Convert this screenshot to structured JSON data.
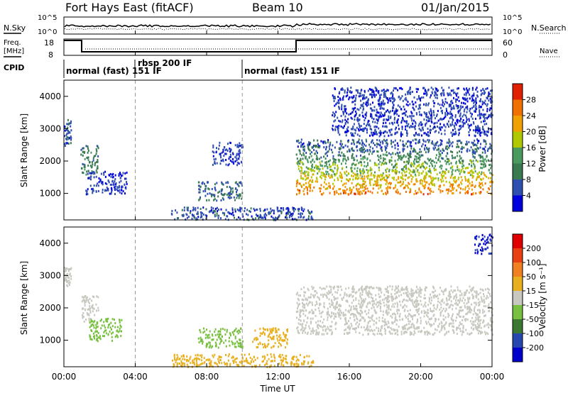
{
  "header": {
    "title": "Fort Hays East (fitACF)",
    "beam": "Beam 10",
    "date": "01/Jan/2015"
  },
  "strip_labels": {
    "nsky": "N.Sky",
    "nsearch": "N.Search",
    "freq_line1": "Freq.",
    "freq_line2": "[MHz]",
    "nave": "Nave",
    "cpid": "CPID",
    "left_ticks_noise": [
      "10^5",
      "10^0"
    ],
    "right_ticks_noise": [
      "10^5",
      "10^0"
    ],
    "left_ticks_freq": [
      "18",
      "8"
    ],
    "right_ticks_nave": [
      "60",
      "0"
    ]
  },
  "cpid_segments": [
    {
      "label": "normal (fast) 151 IF",
      "start_hour": 0
    },
    {
      "label": "rbsp 200 IF",
      "start_hour": 4
    },
    {
      "label": "normal (fast) 151 IF",
      "start_hour": 10
    }
  ],
  "axes": {
    "xlabel": "Time UT",
    "x_ticks": [
      "00:00",
      "04:00",
      "08:00",
      "12:00",
      "16:00",
      "20:00",
      "00:00"
    ],
    "ylabel": "Slant Range [km]",
    "y_ticks": [
      "1000",
      "2000",
      "3000",
      "4000"
    ]
  },
  "power_scale": {
    "label": "Power [dB]",
    "ticks": [
      "4",
      "8",
      "12",
      "16",
      "20",
      "24",
      "28"
    ],
    "colors": [
      "#0000dd",
      "#2f4fb0",
      "#3a7a50",
      "#4a9a60",
      "#b0c800",
      "#f0a000",
      "#f07000",
      "#e02000"
    ]
  },
  "velocity_scale": {
    "label": "Velocity [m s⁻¹]",
    "ticks": [
      "200",
      "100",
      "50",
      "15",
      "-15",
      "-50",
      "-100",
      "-200"
    ],
    "colors": [
      "#0000cc",
      "#2846b0",
      "#3c7832",
      "#78c040",
      "#c8c8c0",
      "#e8b020",
      "#f08020",
      "#e84010",
      "#e00000"
    ]
  },
  "chart_data": [
    {
      "type": "heatmap",
      "panel": "power",
      "ylabel": "Slant Range [km]",
      "xlabel": "",
      "xlim_hours": [
        0,
        24
      ],
      "ylim_km": [
        180,
        4500
      ],
      "zlabel": "Power [dB]",
      "regions": [
        {
          "t0": 0.0,
          "t1": 0.4,
          "r0": 2500,
          "r1": 3300,
          "power_db": 6
        },
        {
          "t0": 0.9,
          "t1": 1.9,
          "r0": 1600,
          "r1": 2500,
          "power_db": 10
        },
        {
          "t0": 1.2,
          "t1": 3.5,
          "r0": 1000,
          "r1": 1700,
          "power_db": 5
        },
        {
          "t0": 7.5,
          "t1": 10.0,
          "r0": 800,
          "r1": 1400,
          "power_db": 8
        },
        {
          "t0": 8.3,
          "t1": 10.0,
          "r0": 1900,
          "r1": 2600,
          "power_db": 5
        },
        {
          "t0": 6.0,
          "t1": 14.0,
          "r0": 200,
          "r1": 600,
          "power_db": 6
        },
        {
          "t0": 13.0,
          "t1": 24.0,
          "r0": 1000,
          "r1": 2700,
          "power_db": 20
        },
        {
          "t0": 15.0,
          "t1": 24.0,
          "r0": 2800,
          "r1": 4300,
          "power_db": 5
        }
      ]
    },
    {
      "type": "heatmap",
      "panel": "velocity",
      "ylabel": "Slant Range [km]",
      "xlabel": "Time UT",
      "xlim_hours": [
        0,
        24
      ],
      "ylim_km": [
        180,
        4500
      ],
      "zlabel": "Velocity [m s⁻¹]",
      "regions": [
        {
          "t0": 0.0,
          "t1": 0.4,
          "r0": 2700,
          "r1": 3300,
          "velocity": 0
        },
        {
          "t0": 0.9,
          "t1": 1.9,
          "r0": 1600,
          "r1": 2400,
          "velocity": 0
        },
        {
          "t0": 1.4,
          "t1": 3.2,
          "r0": 1000,
          "r1": 1700,
          "velocity": 40
        },
        {
          "t0": 7.5,
          "t1": 10.0,
          "r0": 800,
          "r1": 1400,
          "velocity": 40
        },
        {
          "t0": 10.5,
          "t1": 12.5,
          "r0": 800,
          "r1": 1400,
          "velocity": -40
        },
        {
          "t0": 6.0,
          "t1": 14.0,
          "r0": 200,
          "r1": 600,
          "velocity": -40
        },
        {
          "t0": 13.0,
          "t1": 24.0,
          "r0": 1200,
          "r1": 2700,
          "velocity": 0
        },
        {
          "t0": 23.0,
          "t1": 24.0,
          "r0": 3700,
          "r1": 4300,
          "velocity": 200
        }
      ]
    }
  ]
}
